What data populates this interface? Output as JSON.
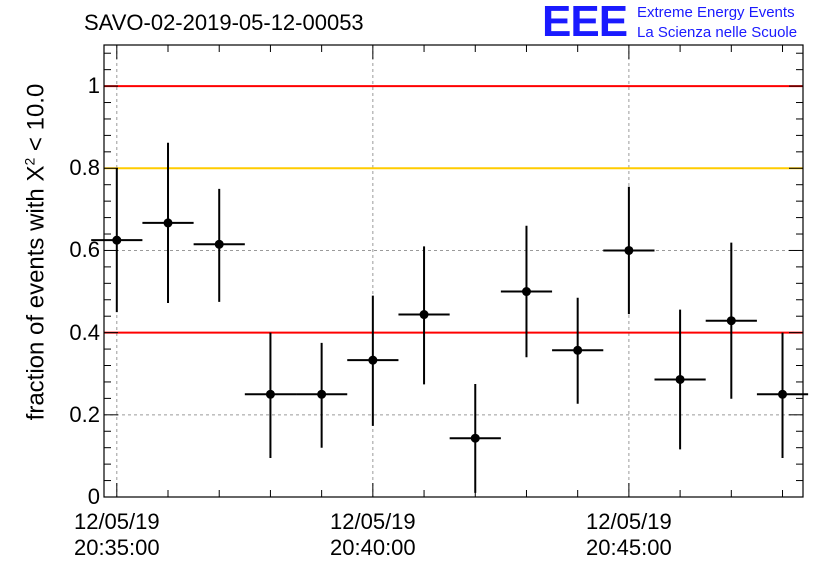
{
  "title": "SAVO-02-2019-05-12-00053",
  "logo": {
    "mark": "EEE",
    "line1": "Extreme Energy Events",
    "line2": "La Scienza nelle Scuole"
  },
  "chart_data": {
    "type": "scatter",
    "title": "SAVO-02-2019-05-12-00053",
    "xlabel": "",
    "ylabel_prefix": "fraction of events with ",
    "ylabel_chi": "X",
    "ylabel_sup": "2",
    "ylabel_suffix": " < 10.0",
    "ylim": [
      0,
      1.1
    ],
    "xlim_minutes": [
      -0.25,
      13.4
    ],
    "grid": true,
    "y_ticks": [
      {
        "value": 0,
        "label": "0"
      },
      {
        "value": 0.2,
        "label": "0.2"
      },
      {
        "value": 0.4,
        "label": "0.4"
      },
      {
        "value": 0.6,
        "label": "0.6"
      },
      {
        "value": 0.8,
        "label": "0.8"
      },
      {
        "value": 1,
        "label": "1"
      }
    ],
    "x_ticks": [
      {
        "minute": 0,
        "date": "12/05/19",
        "time": "20:35:00"
      },
      {
        "minute": 5,
        "date": "12/05/19",
        "time": "20:40:00"
      },
      {
        "minute": 10,
        "date": "12/05/19",
        "time": "20:45:00"
      }
    ],
    "reference_lines": [
      {
        "y": 1.0,
        "color": "#ff0000"
      },
      {
        "y": 0.8,
        "color": "#ffcc00"
      },
      {
        "y": 0.4,
        "color": "#ff0000"
      }
    ],
    "series": [
      {
        "color": "#000000",
        "points": [
          {
            "x": 0.0,
            "y": 0.625,
            "xerr": 0.5,
            "yerr_low": 0.175,
            "yerr_high": 0.175
          },
          {
            "x": 1.0,
            "y": 0.667,
            "xerr": 0.5,
            "yerr_low": 0.195,
            "yerr_high": 0.195
          },
          {
            "x": 2.0,
            "y": 0.615,
            "xerr": 0.5,
            "yerr_low": 0.14,
            "yerr_high": 0.135
          },
          {
            "x": 3.0,
            "y": 0.25,
            "xerr": 0.5,
            "yerr_low": 0.155,
            "yerr_high": 0.15
          },
          {
            "x": 4.0,
            "y": 0.25,
            "xerr": 0.5,
            "yerr_low": 0.13,
            "yerr_high": 0.125
          },
          {
            "x": 5.0,
            "y": 0.333,
            "xerr": 0.5,
            "yerr_low": 0.16,
            "yerr_high": 0.157
          },
          {
            "x": 6.0,
            "y": 0.444,
            "xerr": 0.5,
            "yerr_low": 0.17,
            "yerr_high": 0.166
          },
          {
            "x": 7.0,
            "y": 0.143,
            "xerr": 0.5,
            "yerr_low": 0.133,
            "yerr_high": 0.132
          },
          {
            "x": 8.0,
            "y": 0.5,
            "xerr": 0.5,
            "yerr_low": 0.16,
            "yerr_high": 0.16
          },
          {
            "x": 9.0,
            "y": 0.357,
            "xerr": 0.5,
            "yerr_low": 0.13,
            "yerr_high": 0.128
          },
          {
            "x": 10.0,
            "y": 0.6,
            "xerr": 0.5,
            "yerr_low": 0.155,
            "yerr_high": 0.155
          },
          {
            "x": 11.0,
            "y": 0.286,
            "xerr": 0.5,
            "yerr_low": 0.17,
            "yerr_high": 0.17
          },
          {
            "x": 12.0,
            "y": 0.429,
            "xerr": 0.5,
            "yerr_low": 0.19,
            "yerr_high": 0.19
          },
          {
            "x": 13.0,
            "y": 0.25,
            "xerr": 0.5,
            "yerr_low": 0.155,
            "yerr_high": 0.15
          }
        ]
      }
    ]
  }
}
